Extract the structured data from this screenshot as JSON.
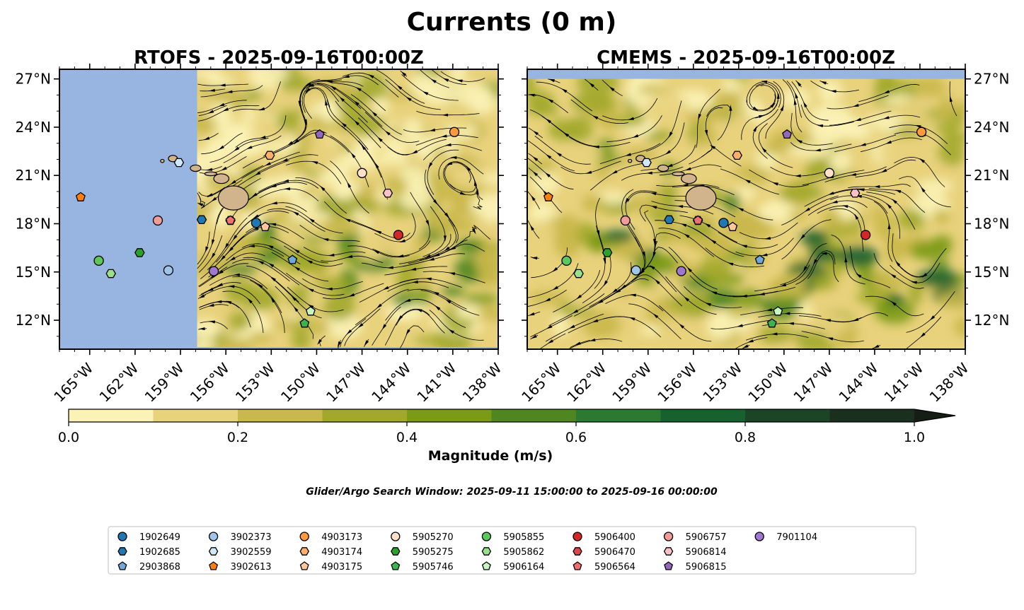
{
  "figure": {
    "title": "Currents (0 m)",
    "search_window": "Glider/Argo Search Window: 2025-09-11 15:00:00 to 2025-09-16 00:00:00"
  },
  "chart_data": [
    {
      "type": "heatmap",
      "title": "RTOFS - 2025-09-16T00:00Z",
      "xlim": [
        -167,
        -138
      ],
      "ylim": [
        10.2,
        27.6
      ],
      "x_ticks": [
        "165°W",
        "162°W",
        "159°W",
        "156°W",
        "153°W",
        "150°W",
        "147°W",
        "144°W",
        "141°W",
        "138°W"
      ],
      "y_ticks": [
        "12°N",
        "15°N",
        "18°N",
        "21°N",
        "24°N",
        "27°N"
      ],
      "x_tick_values": [
        -165,
        -162,
        -159,
        -156,
        -153,
        -150,
        -147,
        -144,
        -141,
        -138
      ],
      "y_tick_values": [
        12,
        15,
        18,
        21,
        24,
        27
      ],
      "data_domain_west_lon": -157.9,
      "colors": {
        "no_data": "#97b5e0"
      }
    },
    {
      "type": "heatmap",
      "title": "CMEMS - 2025-09-16T00:00Z",
      "xlim": [
        -167,
        -138
      ],
      "ylim": [
        10.2,
        27.6
      ],
      "x_ticks": [
        "165°W",
        "162°W",
        "159°W",
        "156°W",
        "153°W",
        "150°W",
        "147°W",
        "144°W",
        "141°W",
        "138°W"
      ],
      "y_ticks": [
        "12°N",
        "15°N",
        "18°N",
        "21°N",
        "24°N",
        "27°N"
      ],
      "x_tick_values": [
        -165,
        -162,
        -159,
        -156,
        -153,
        -150,
        -147,
        -144,
        -141,
        -138
      ],
      "y_tick_values": [
        12,
        15,
        18,
        21,
        24,
        27
      ],
      "data_domain_north_lat": 27.0,
      "colors": {
        "no_data": "#97b5e0"
      }
    }
  ],
  "colorbar": {
    "label": "Magnitude (m/s)",
    "ticks": [
      "0.0",
      "0.2",
      "0.4",
      "0.6",
      "0.8",
      "1.0"
    ],
    "tick_values": [
      0.0,
      0.2,
      0.4,
      0.6,
      0.8,
      1.0
    ],
    "range": [
      0,
      1.0
    ],
    "extend": "max",
    "colors": [
      "#fbf2b6",
      "#e8d27c",
      "#c9b84b",
      "#a2a82c",
      "#7b9a16",
      "#4f8620",
      "#2c7a31",
      "#17612f",
      "#1c4427",
      "#1a2f1e"
    ],
    "extend_color": "#141e14"
  },
  "floats": [
    {
      "id": "1902649",
      "marker": "circle",
      "color": "#1f77b4",
      "lon": -154.0,
      "lat": 18.05
    },
    {
      "id": "1902685",
      "marker": "hexagon",
      "color": "#1f77b4",
      "lon": -157.6,
      "lat": 18.25
    },
    {
      "id": "2903868",
      "marker": "pentagon",
      "color": "#6fa8dc",
      "lon": -151.6,
      "lat": 15.75
    },
    {
      "id": "3902373",
      "marker": "circle",
      "color": "#9fc5e8",
      "lon": -159.8,
      "lat": 15.1
    },
    {
      "id": "3902559",
      "marker": "hexagon",
      "color": "#cfe8fb",
      "lon": -159.1,
      "lat": 21.8
    },
    {
      "id": "3902613",
      "marker": "pentagon",
      "color": "#ff7f0e",
      "lon": -165.6,
      "lat": 19.65
    },
    {
      "id": "4903173",
      "marker": "circle",
      "color": "#ff9a3c",
      "lon": -140.9,
      "lat": 23.7
    },
    {
      "id": "4903174",
      "marker": "hexagon",
      "color": "#ffad6b",
      "lon": -153.1,
      "lat": 22.25
    },
    {
      "id": "4903175",
      "marker": "pentagon",
      "color": "#ffc79a",
      "lon": -153.4,
      "lat": 17.8
    },
    {
      "id": "5905270",
      "marker": "circle",
      "color": "#fde1c8",
      "lon": -147.0,
      "lat": 21.15
    },
    {
      "id": "5905275",
      "marker": "hexagon",
      "color": "#2ca02c",
      "lon": -161.7,
      "lat": 16.2
    },
    {
      "id": "5905746",
      "marker": "pentagon",
      "color": "#3cb44b",
      "lon": -150.8,
      "lat": 11.8
    },
    {
      "id": "5905855",
      "marker": "circle",
      "color": "#5cc85c",
      "lon": -164.4,
      "lat": 15.7
    },
    {
      "id": "5905862",
      "marker": "hexagon",
      "color": "#98e08c",
      "lon": -163.6,
      "lat": 14.9
    },
    {
      "id": "5906164",
      "marker": "pentagon",
      "color": "#c8f5c0",
      "lon": -150.4,
      "lat": 12.55
    },
    {
      "id": "5906400",
      "marker": "circle",
      "color": "#d62728",
      "lon": -144.6,
      "lat": 17.3
    },
    {
      "id": "5906470",
      "marker": "hexagon",
      "color": "#e0474c",
      "lon": -155.7,
      "lat": 18.2
    },
    {
      "id": "5906564",
      "marker": "pentagon",
      "color": "#f07070",
      "lon": -155.7,
      "lat": 18.2
    },
    {
      "id": "5906757",
      "marker": "circle",
      "color": "#f29b9b",
      "lon": -160.5,
      "lat": 18.2
    },
    {
      "id": "5906814",
      "marker": "hexagon",
      "color": "#fbc0c8",
      "lon": -145.3,
      "lat": 19.9
    },
    {
      "id": "5906815",
      "marker": "pentagon",
      "color": "#9467bd",
      "lon": -149.8,
      "lat": 23.55
    },
    {
      "id": "7901104",
      "marker": "circle",
      "color": "#a078d0",
      "lon": -156.8,
      "lat": 15.05
    }
  ],
  "colors": {
    "land": "#d2b48c",
    "ocean_no_data": "#97b5e0",
    "streamline": "#000000"
  }
}
